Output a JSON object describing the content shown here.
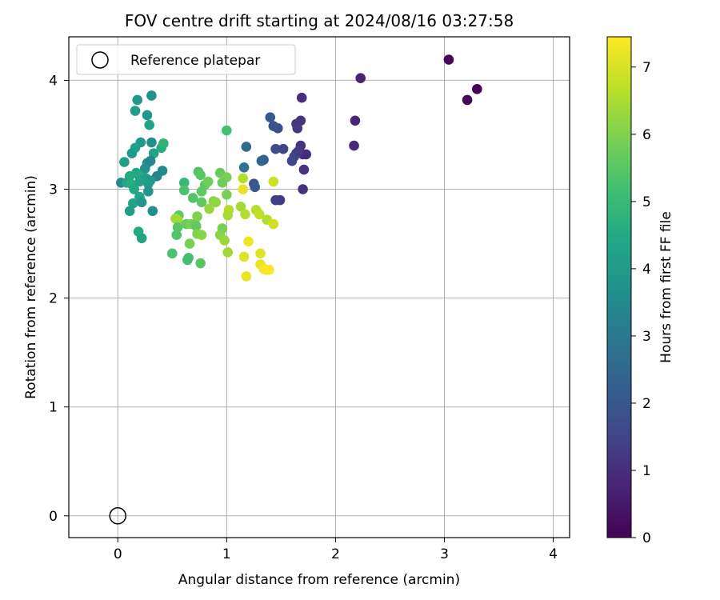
{
  "chart_data": {
    "type": "scatter",
    "title": "FOV centre drift starting at 2024/08/16 03:27:58",
    "xlabel": "Angular distance from reference (arcmin)",
    "ylabel": "Rotation from reference (arcmin)",
    "xlim": [
      -0.45,
      4.15
    ],
    "ylim": [
      -0.2,
      4.4
    ],
    "xticks": [
      0,
      1,
      2,
      3,
      4
    ],
    "yticks": [
      0,
      1,
      2,
      3,
      4
    ],
    "grid": true,
    "legend": {
      "placement": "top-left",
      "entries": [
        "Reference platepar"
      ]
    },
    "reference_point": {
      "label": "Reference platepar",
      "x": 0,
      "y": 0,
      "marker": "open-circle"
    },
    "colorbar": {
      "label": "Hours from first FF file",
      "colormap": "viridis",
      "min": 0,
      "max": 7.45,
      "ticks": [
        0,
        1,
        2,
        3,
        4,
        5,
        6,
        7
      ]
    },
    "points": [
      [
        3.3,
        3.92,
        0.05
      ],
      [
        3.04,
        4.19,
        0.15
      ],
      [
        3.21,
        3.82,
        0.1
      ],
      [
        2.23,
        4.02,
        0.75
      ],
      [
        2.18,
        3.63,
        0.8
      ],
      [
        2.17,
        3.4,
        0.9
      ],
      [
        1.69,
        3.84,
        1.0
      ],
      [
        1.68,
        3.63,
        1.1
      ],
      [
        1.64,
        3.6,
        1.15
      ],
      [
        1.65,
        3.56,
        1.2
      ],
      [
        1.68,
        3.4,
        1.1
      ],
      [
        1.7,
        3.32,
        1.0
      ],
      [
        1.73,
        3.32,
        0.95
      ],
      [
        1.71,
        3.18,
        1.05
      ],
      [
        1.7,
        3.0,
        1.1
      ],
      [
        1.64,
        3.33,
        1.4
      ],
      [
        1.62,
        3.3,
        1.5
      ],
      [
        1.6,
        3.26,
        1.6
      ],
      [
        1.66,
        3.35,
        1.3
      ],
      [
        1.52,
        3.37,
        1.5
      ],
      [
        1.47,
        3.56,
        1.7
      ],
      [
        1.43,
        3.58,
        1.9
      ],
      [
        1.4,
        3.66,
        2.1
      ],
      [
        1.45,
        3.37,
        1.7
      ],
      [
        1.49,
        2.9,
        1.3
      ],
      [
        1.45,
        2.9,
        1.4
      ],
      [
        1.34,
        3.27,
        2.3
      ],
      [
        1.32,
        3.26,
        2.4
      ],
      [
        1.25,
        3.05,
        2.0
      ],
      [
        1.26,
        3.02,
        2.1
      ],
      [
        1.18,
        3.39,
        2.6
      ],
      [
        1.16,
        3.2,
        2.8
      ],
      [
        0.31,
        3.86,
        3.8
      ],
      [
        0.18,
        3.82,
        4.0
      ],
      [
        0.16,
        3.72,
        4.1
      ],
      [
        0.27,
        3.68,
        3.9
      ],
      [
        0.29,
        3.59,
        4.3
      ],
      [
        0.21,
        3.43,
        4.0
      ],
      [
        0.31,
        3.43,
        3.7
      ],
      [
        0.16,
        3.38,
        4.2
      ],
      [
        0.13,
        3.33,
        4.0
      ],
      [
        0.33,
        3.33,
        4.3
      ],
      [
        0.4,
        3.38,
        4.6
      ],
      [
        0.42,
        3.42,
        4.8
      ],
      [
        0.06,
        3.25,
        4.2
      ],
      [
        0.27,
        3.24,
        3.6
      ],
      [
        0.3,
        3.26,
        3.4
      ],
      [
        0.25,
        3.19,
        3.8
      ],
      [
        0.41,
        3.17,
        3.5
      ],
      [
        0.36,
        3.12,
        3.3
      ],
      [
        0.17,
        3.15,
        4.4
      ],
      [
        0.11,
        3.12,
        4.5
      ],
      [
        0.2,
        3.12,
        4.5
      ],
      [
        0.26,
        3.1,
        4.2
      ],
      [
        0.3,
        3.08,
        4.0
      ],
      [
        0.03,
        3.06,
        3.6
      ],
      [
        0.08,
        3.06,
        4.4
      ],
      [
        0.12,
        3.05,
        4.6
      ],
      [
        0.2,
        3.07,
        4.3
      ],
      [
        0.28,
        3.05,
        4.1
      ],
      [
        0.15,
        3.0,
        4.5
      ],
      [
        0.28,
        2.98,
        3.9
      ],
      [
        0.2,
        2.93,
        4.4
      ],
      [
        0.14,
        2.87,
        4.3
      ],
      [
        0.22,
        2.88,
        3.9
      ],
      [
        0.11,
        2.8,
        4.2
      ],
      [
        0.32,
        2.8,
        3.7
      ],
      [
        0.19,
        2.61,
        4.5
      ],
      [
        0.22,
        2.55,
        4.3
      ],
      [
        1.0,
        3.54,
        5.2
      ],
      [
        0.61,
        3.06,
        5.0
      ],
      [
        0.74,
        3.16,
        5.4
      ],
      [
        0.76,
        3.13,
        5.5
      ],
      [
        0.61,
        2.99,
        5.3
      ],
      [
        0.69,
        2.92,
        5.4
      ],
      [
        0.77,
        2.98,
        5.6
      ],
      [
        0.8,
        3.04,
        5.6
      ],
      [
        0.83,
        3.07,
        5.8
      ],
      [
        0.94,
        3.15,
        5.7
      ],
      [
        1.0,
        3.11,
        5.9
      ],
      [
        0.96,
        3.06,
        5.8
      ],
      [
        1.0,
        2.95,
        5.9
      ],
      [
        0.88,
        2.89,
        6.1
      ],
      [
        0.9,
        2.88,
        6.2
      ],
      [
        0.77,
        2.88,
        5.6
      ],
      [
        0.84,
        2.82,
        6.3
      ],
      [
        0.56,
        2.76,
        5.6
      ],
      [
        0.55,
        2.72,
        6.3
      ],
      [
        0.53,
        2.73,
        6.4
      ],
      [
        0.63,
        2.68,
        5.7
      ],
      [
        0.67,
        2.68,
        5.9
      ],
      [
        0.71,
        2.68,
        5.8
      ],
      [
        0.73,
        2.75,
        6.0
      ],
      [
        0.72,
        2.66,
        5.6
      ],
      [
        0.55,
        2.65,
        5.5
      ],
      [
        0.54,
        2.58,
        5.4
      ],
      [
        0.73,
        2.59,
        6.0
      ],
      [
        0.77,
        2.58,
        6.1
      ],
      [
        0.66,
        2.5,
        5.9
      ],
      [
        0.5,
        2.41,
        5.3
      ],
      [
        0.65,
        2.37,
        5.3
      ],
      [
        0.64,
        2.35,
        5.2
      ],
      [
        0.76,
        2.32,
        5.5
      ],
      [
        0.96,
        2.64,
        5.9
      ],
      [
        0.94,
        2.58,
        6.1
      ],
      [
        0.98,
        2.53,
        6.3
      ],
      [
        1.01,
        2.42,
        6.4
      ],
      [
        1.02,
        2.81,
        6.6
      ],
      [
        1.01,
        2.76,
        6.5
      ],
      [
        1.13,
        2.84,
        6.4
      ],
      [
        1.17,
        2.77,
        6.6
      ],
      [
        1.27,
        2.81,
        6.6
      ],
      [
        1.3,
        2.77,
        6.7
      ],
      [
        1.37,
        2.72,
        6.6
      ],
      [
        1.43,
        2.68,
        6.9
      ],
      [
        1.43,
        3.07,
        6.9
      ],
      [
        1.15,
        3.1,
        6.6
      ],
      [
        1.15,
        3.0,
        7.2
      ],
      [
        1.16,
        2.38,
        7.1
      ],
      [
        1.2,
        2.52,
        7.3
      ],
      [
        1.31,
        2.41,
        7.1
      ],
      [
        1.31,
        2.31,
        7.2
      ],
      [
        1.34,
        2.27,
        7.3
      ],
      [
        1.36,
        2.26,
        7.4
      ],
      [
        1.39,
        2.26,
        7.4
      ],
      [
        1.18,
        2.2,
        7.2
      ]
    ]
  }
}
